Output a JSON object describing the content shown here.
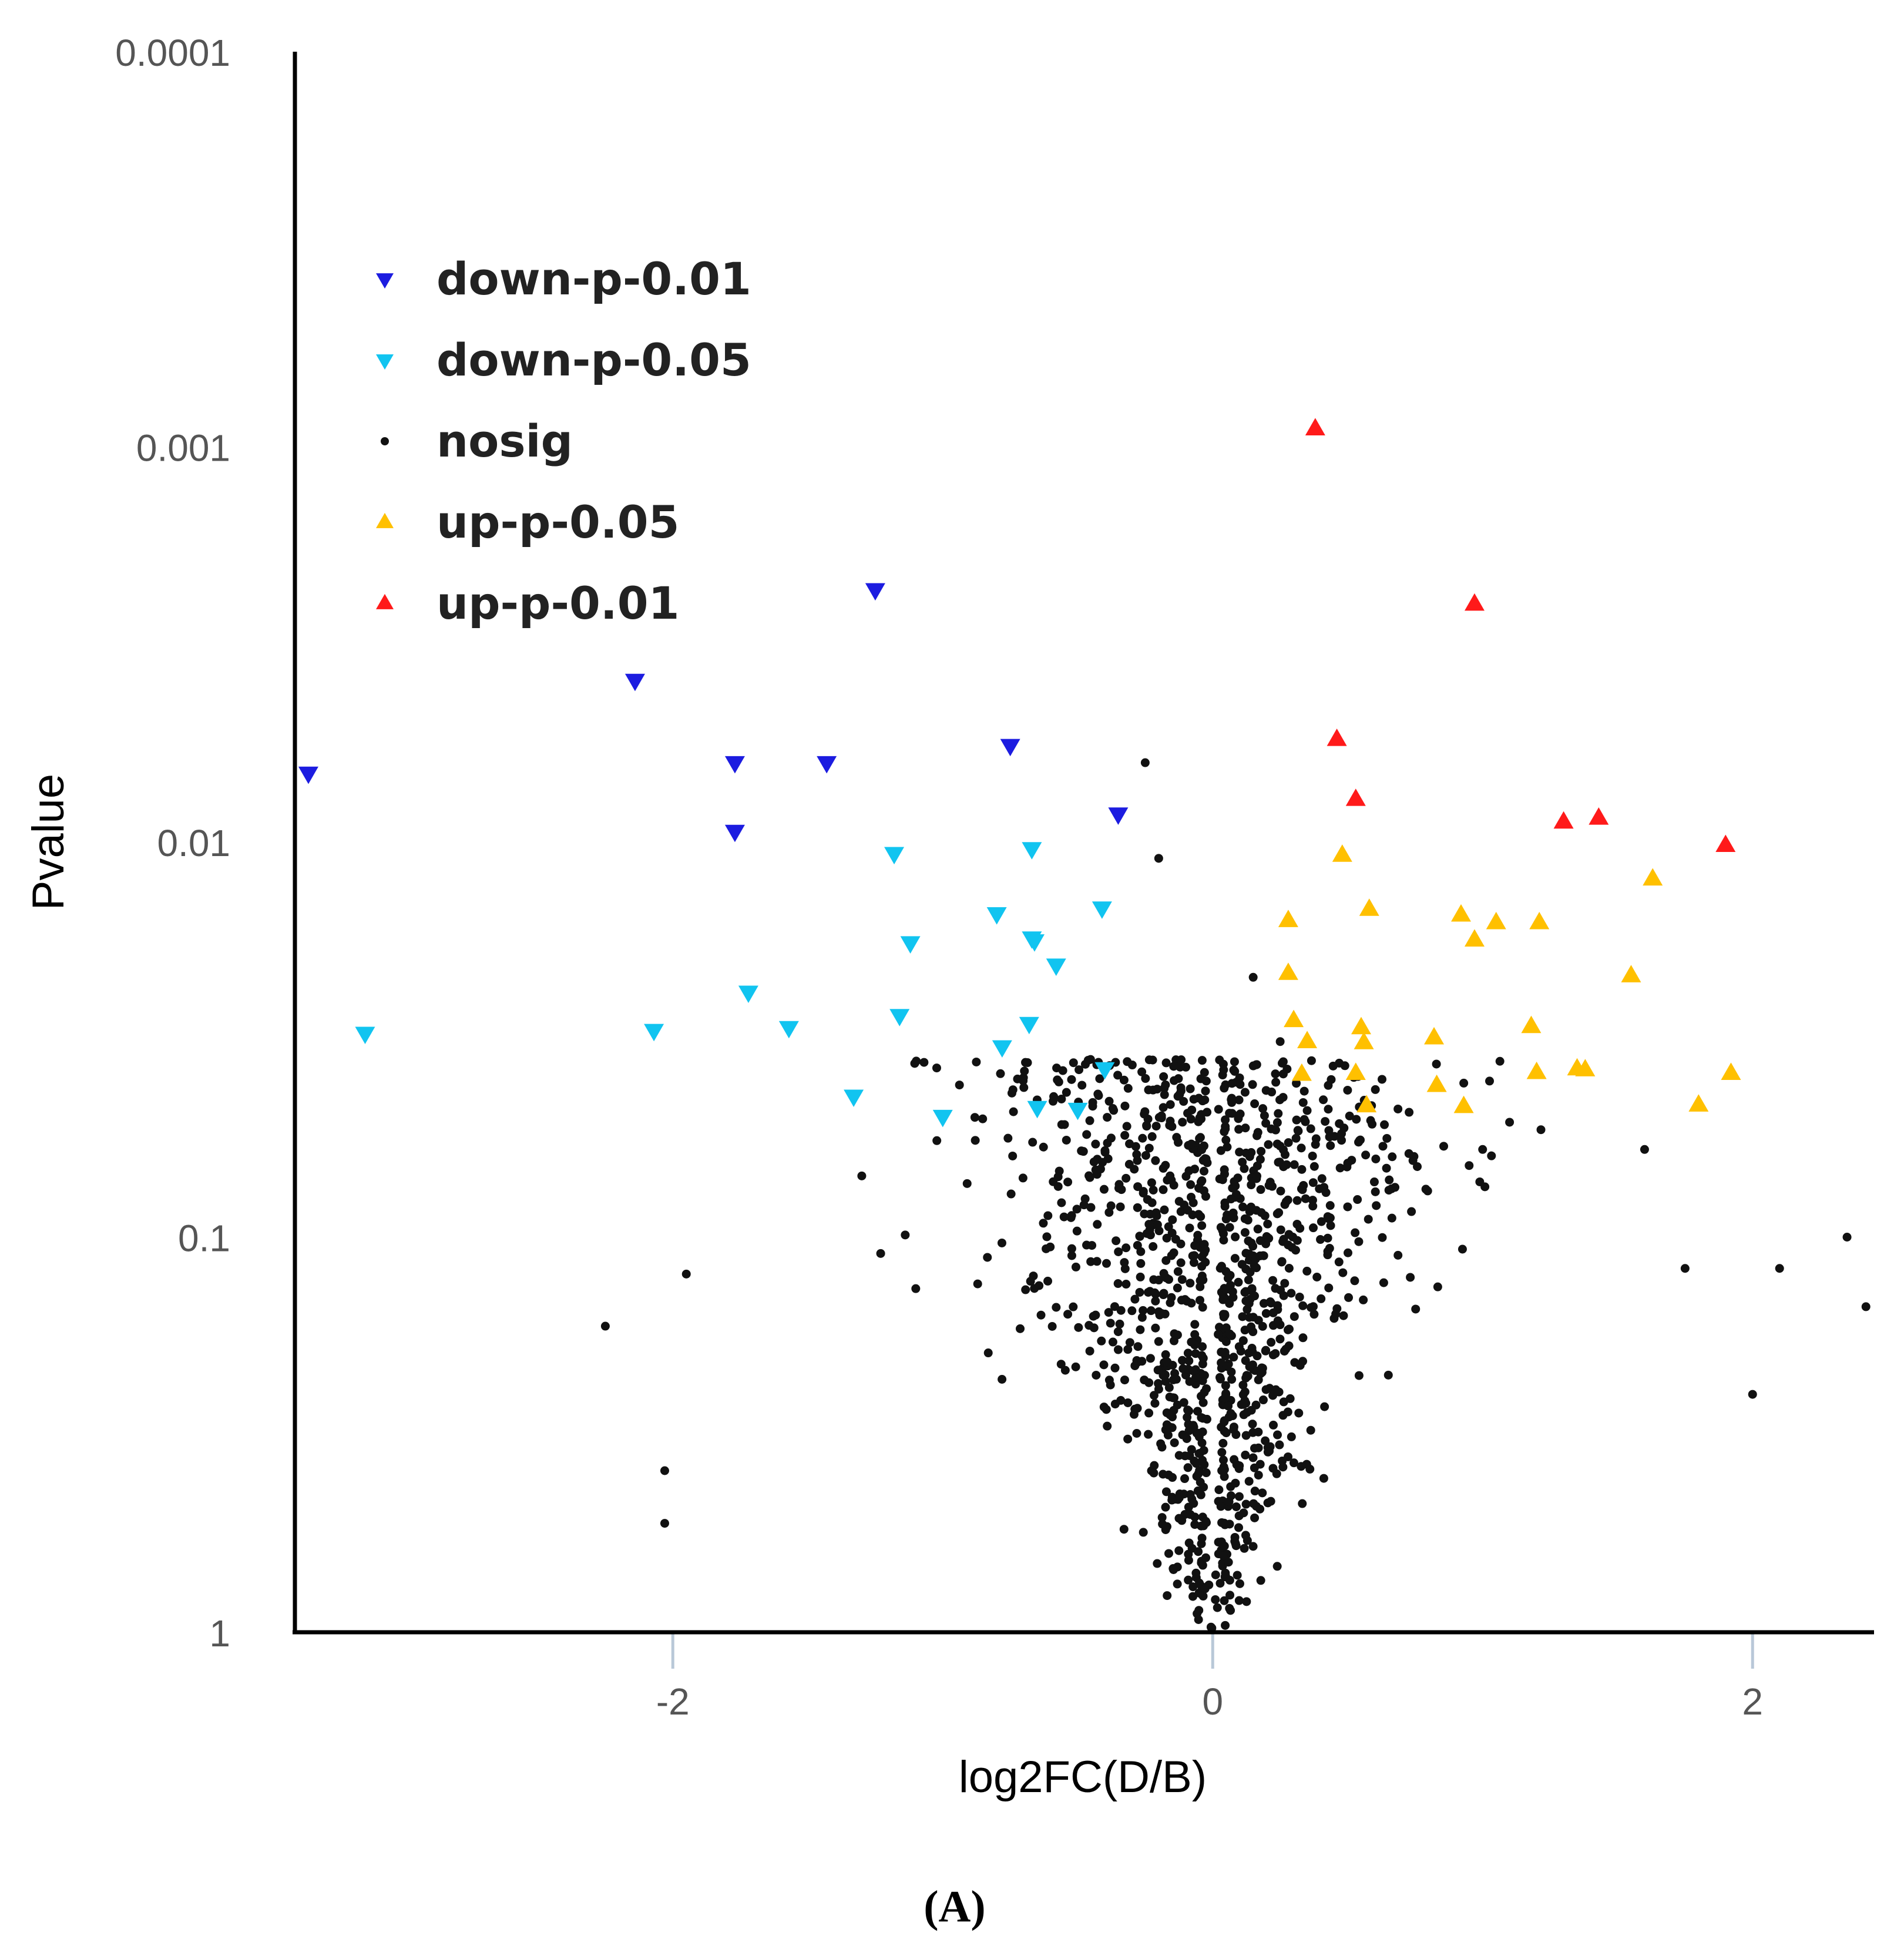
{
  "chart_data": {
    "type": "scatter",
    "subtype": "volcano",
    "title": "",
    "xlabel": "log2FC(D/B)",
    "ylabel": "Pvalue",
    "panel_label": "(A)",
    "xlim": [
      -3.4,
      2.45
    ],
    "ylim_log10": [
      -4,
      0
    ],
    "x_ticks": [
      -2,
      0,
      2
    ],
    "x_tick_labels": [
      "-2",
      "0",
      "2"
    ],
    "y_ticks": [
      0.0001,
      0.001,
      0.01,
      0.1,
      1
    ],
    "y_tick_labels": [
      "0.0001",
      "0.001",
      "0.01",
      "0.1",
      "1"
    ],
    "grid": false,
    "legend_position": "top-left",
    "legend": [
      {
        "key": "down01",
        "label": "down-p-0.01",
        "marker": "triangle-down",
        "color": "#1c1ce0"
      },
      {
        "key": "down05",
        "label": "down-p-0.05",
        "marker": "triangle-down",
        "color": "#11c4f0"
      },
      {
        "key": "nosig",
        "label": "nosig",
        "marker": "dot",
        "color": "#111111"
      },
      {
        "key": "up05",
        "label": "up-p-0.05",
        "marker": "triangle-up",
        "color": "#ffc000"
      },
      {
        "key": "up01",
        "label": "up-p-0.01",
        "marker": "triangle-up",
        "color": "#ff1a1a"
      }
    ],
    "series": [
      {
        "name": "down-p-0.01",
        "color": "#1c1ce0",
        "x": [
          -3.35,
          -2.14,
          -1.77,
          -1.77,
          -1.43,
          -1.25,
          -0.75,
          -0.35
        ],
        "y": [
          0.0067,
          0.0039,
          0.0063,
          0.0094,
          0.0063,
          0.0023,
          0.0057,
          0.0085
        ]
      },
      {
        "name": "down-p-0.05",
        "color": "#11c4f0",
        "x": [
          -3.14,
          -2.07,
          -1.72,
          -1.57,
          -1.33,
          -1.18,
          -1.16,
          -1.12,
          -1.0,
          -0.8,
          -0.78,
          -0.68,
          -0.67,
          -0.67,
          -0.66,
          -0.65,
          -0.58,
          -0.5,
          -0.41,
          -0.4
        ],
        "y": [
          0.0305,
          0.03,
          0.024,
          0.0295,
          0.044,
          0.0107,
          0.0275,
          0.018,
          0.0495,
          0.0152,
          0.033,
          0.0288,
          0.0175,
          0.0104,
          0.0178,
          0.047,
          0.0205,
          0.0475,
          0.0147,
          0.0375
        ]
      },
      {
        "name": "up-p-0.05",
        "color": "#ffc000",
        "x": [
          0.28,
          0.28,
          0.3,
          0.33,
          0.35,
          0.48,
          0.53,
          0.55,
          0.56,
          0.57,
          0.58,
          0.82,
          0.83,
          0.92,
          0.93,
          0.97,
          1.05,
          1.18,
          1.2,
          1.21,
          1.35,
          1.38,
          1.55,
          1.63,
          1.8,
          1.92
        ],
        "y": [
          0.0158,
          0.0215,
          0.0283,
          0.0387,
          0.032,
          0.0108,
          0.0385,
          0.0295,
          0.0322,
          0.0465,
          0.0148,
          0.0313,
          0.0413,
          0.0153,
          0.0467,
          0.0177,
          0.016,
          0.0293,
          0.0383,
          0.016,
          0.0375,
          0.0377,
          0.0218,
          0.0124,
          0.0463,
          0.0385
        ]
      },
      {
        "name": "up-p-0.01",
        "color": "#ff1a1a",
        "x": [
          0.38,
          0.46,
          0.53,
          0.97,
          1.3,
          1.43,
          1.9
        ],
        "y": [
          0.0009,
          0.0055,
          0.0078,
          0.0025,
          0.0089,
          0.0087,
          0.0102
        ]
      },
      {
        "name": "nosig",
        "color": "#111111",
        "generated": true,
        "count": 1150,
        "x": [
          -0.25,
          -0.2,
          0.15,
          0.12,
          -1.95,
          -2.25,
          -2.03,
          -2.03,
          -1.3,
          -1.23,
          -1.1,
          1.6,
          2.1,
          2.35,
          2.42,
          2.0,
          1.75,
          1.0,
          0.5,
          0.25
        ],
        "y": [
          0.0063,
          0.011,
          0.022,
          0.043,
          0.124,
          0.168,
          0.39,
          0.53,
          0.07,
          0.11,
          0.135,
          0.06,
          0.12,
          0.1,
          0.15,
          0.25,
          0.12,
          0.06,
          0.065,
          0.032
        ]
      }
    ]
  }
}
